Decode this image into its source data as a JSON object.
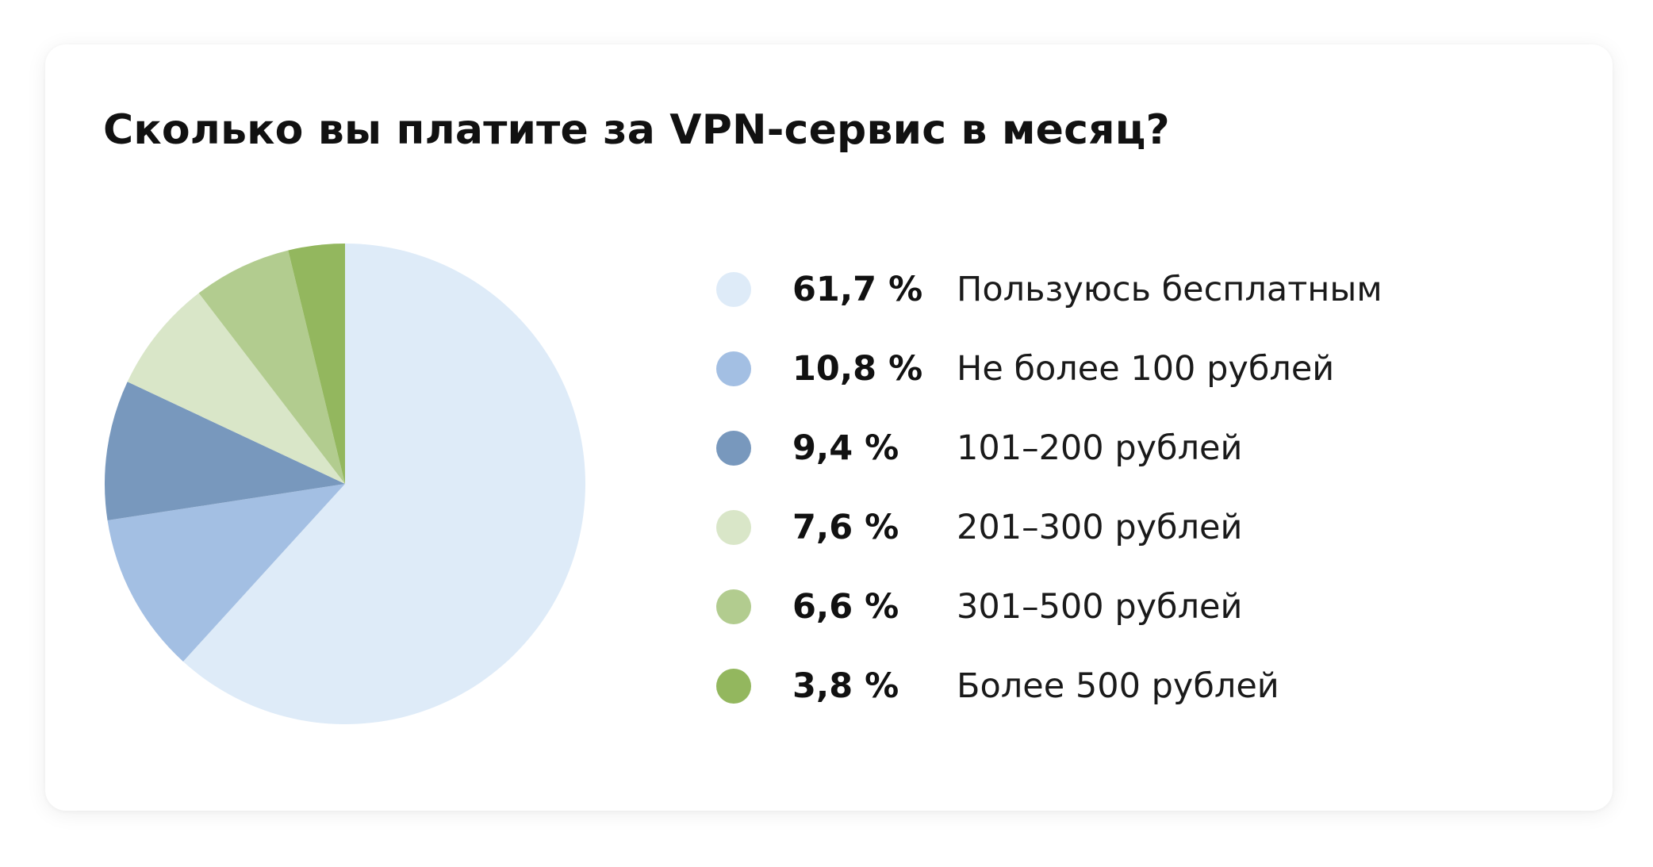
{
  "chart_data": {
    "type": "pie",
    "title": "Сколько вы платите за VPN-сервис в месяц?",
    "slices": [
      {
        "value": 61.7,
        "value_label": "61,7 %",
        "label": "Пользуюсь бесплатным",
        "color": "#deebf8"
      },
      {
        "value": 10.8,
        "value_label": "10,8 %",
        "label": "Не более 100 рублей",
        "color": "#a3bfe3"
      },
      {
        "value": 9.4,
        "value_label": "9,4 %",
        "label": "101–200 рублей",
        "color": "#7898bd"
      },
      {
        "value": 7.6,
        "value_label": "7,6 %",
        "label": "201–300 рублей",
        "color": "#d9e6c8"
      },
      {
        "value": 6.6,
        "value_label": "6,6 %",
        "label": "301–500 рублей",
        "color": "#b2cc8f"
      },
      {
        "value": 3.8,
        "value_label": "3,8 %",
        "label": "Более 500 рублей",
        "color": "#93b75e"
      }
    ],
    "legend_position": "right",
    "start_angle": "top, clockwise"
  }
}
